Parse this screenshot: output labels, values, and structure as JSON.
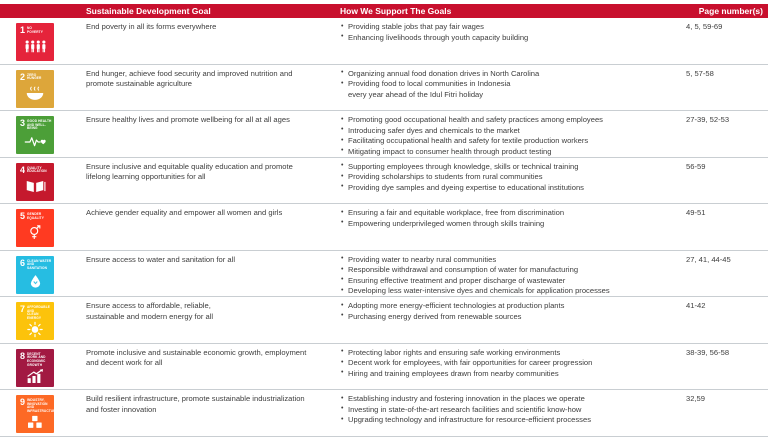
{
  "colors": {
    "header_bar": "#C8102E",
    "separator": "#C9CED2",
    "body_text": "#3E3E3E"
  },
  "bullet_glyph": "•",
  "header": {
    "col_goal": "Sustainable Development Goal",
    "col_support": "How We Support The Goals",
    "col_pages": "Page number(s)"
  },
  "rows": [
    {
      "num": "1",
      "icon": "sdg1-people-icon",
      "color": "#E5243B",
      "icon_label": "No\nPoverty",
      "goal": "End poverty in all its forms everywhere",
      "bullets": [
        "Providing stable jobs that pay fair wages",
        "Enhancing livelihoods through youth capacity building"
      ],
      "pages": "4, 5, 59-69"
    },
    {
      "num": "2",
      "icon": "sdg2-bowl-icon",
      "color": "#DDA63A",
      "icon_label": "Zero\nHunger",
      "goal": "End hunger, achieve food security and improved nutrition and\npromote sustainable agriculture",
      "bullets": [
        "Organizing annual food donation drives in North Carolina",
        "Providing food to local communities in Indonesia\nevery year ahead of the Idul Fitri holiday"
      ],
      "pages": "5, 57-58"
    },
    {
      "num": "3",
      "icon": "sdg3-heartbeat-icon",
      "color": "#4C9F38",
      "icon_label": "Good Health\nand Well-Being",
      "goal": "Ensure healthy lives and promote wellbeing for all at all ages",
      "bullets": [
        "Promoting good occupational health and safety practices among employees",
        "Introducing safer dyes and chemicals to the market",
        "Facilitating occupational health and safety for textile production workers",
        "Mitigating impact to consumer health through product testing"
      ],
      "pages": "27-39, 52-53"
    },
    {
      "num": "4",
      "icon": "sdg4-book-icon",
      "color": "#C5192D",
      "icon_label": "Quality\nEducation",
      "goal": "Ensure inclusive and equitable quality education and promote\nlifelong learning opportunities for all",
      "bullets": [
        "Supporting employees through knowledge, skills or technical training",
        "Providing scholarships to students from rural communities",
        "Providing dye samples and dyeing expertise to educational institutions"
      ],
      "pages": "56-59"
    },
    {
      "num": "5",
      "icon": "sdg5-gender-icon",
      "color": "#FF3A21",
      "icon_label": "Gender\nEquality",
      "goal": "Achieve gender equality and empower all women and girls",
      "bullets": [
        "Ensuring a fair and equitable workplace, free from discrimination",
        "Empowering underprivileged women through skills training"
      ],
      "pages": "49-51"
    },
    {
      "num": "6",
      "icon": "sdg6-water-drop-icon",
      "color": "#26BDE2",
      "icon_label": "Clean Water\nand Sanitation",
      "goal": "Ensure access to water and sanitation for all",
      "bullets": [
        "Providing water to nearby rural communities",
        "Responsible withdrawal and consumption of water for manufacturing",
        "Ensuring effective treatment and proper discharge of wastewater",
        "Developing less water-intensive dyes and chemicals for application processes"
      ],
      "pages": "27, 41, 44-45"
    },
    {
      "num": "7",
      "icon": "sdg7-sun-icon",
      "color": "#FCC30B",
      "icon_label": "Affordable and\nClean Energy",
      "goal": "Ensure access to affordable, reliable,\nsustainable and modern energy for all",
      "bullets": [
        "Adopting more energy-efficient technologies at production plants",
        "Purchasing energy derived from renewable sources"
      ],
      "pages": "41-42"
    },
    {
      "num": "8",
      "icon": "sdg8-growth-chart-icon",
      "color": "#A21942",
      "icon_label": "Decent Work and\nEconomic Growth",
      "goal": "Promote inclusive and sustainable economic growth, employment\nand decent work for all",
      "bullets": [
        "Protecting labor rights and ensuring safe working environments",
        "Decent work for employees, with fair opportunities for career progression",
        "Hiring and training employees drawn from nearby communities"
      ],
      "pages": "38-39, 56-58"
    },
    {
      "num": "9",
      "icon": "sdg9-cubes-icon",
      "color": "#FD6925",
      "icon_label": "Industry, Innovation\nand Infrastructure",
      "goal": "Build resilient infrastructure, promote sustainable industrialization\nand foster innovation",
      "bullets": [
        "Establishing industry and fostering innovation in the places we operate",
        "Investing in state-of-the-art research facilities and scientific know-how",
        "Upgrading technology and infrastructure for resource-efficient processes"
      ],
      "pages": "32,59"
    }
  ]
}
